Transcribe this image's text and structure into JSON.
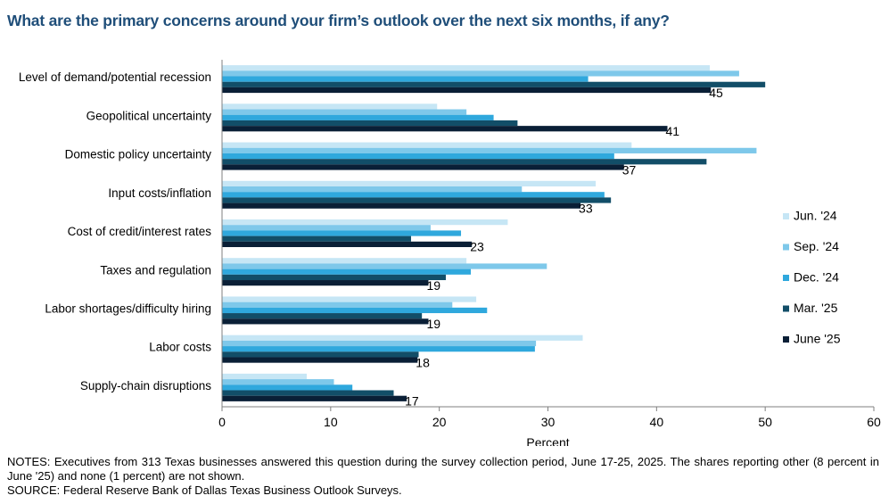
{
  "title": "What are the primary concerns around your firm’s outlook over the next six months, if any?",
  "notes": "NOTES: Executives from 313 Texas businesses answered this question during the survey collection period, June 17-25, 2025. The shares reporting other (8 percent in June '25) and none (1 percent) are not shown.",
  "source": "SOURCE: Federal Reserve Bank of Dallas Texas Business Outlook Surveys.",
  "chart_data": {
    "type": "bar",
    "orientation": "horizontal",
    "categories": [
      "Level of demand/potential recession",
      "Geopolitical uncertainty",
      "Domestic policy uncertainty",
      "Input costs/inflation",
      "Cost of credit/interest rates",
      "Taxes and regulation",
      "Labor shortages/difficulty hiring",
      "Labor costs",
      "Supply-chain disruptions"
    ],
    "series": [
      {
        "name": "Jun. '24",
        "color": "#c6e6f5",
        "values": [
          44.9,
          19.8,
          37.7,
          34.4,
          26.3,
          22.5,
          23.4,
          33.2,
          7.8
        ]
      },
      {
        "name": "Sep. '24",
        "color": "#7ec8ea",
        "values": [
          47.6,
          22.5,
          49.2,
          27.6,
          19.2,
          29.9,
          21.2,
          28.9,
          10.3
        ]
      },
      {
        "name": "Dec. '24",
        "color": "#2fa8dd",
        "values": [
          33.7,
          25.0,
          36.1,
          35.2,
          22.0,
          22.9,
          24.4,
          28.8,
          12.0
        ]
      },
      {
        "name": "Mar. '25",
        "color": "#124e68",
        "values": [
          50.0,
          27.2,
          44.6,
          35.8,
          17.4,
          20.6,
          18.4,
          18.1,
          15.8
        ]
      },
      {
        "name": "June '25",
        "color": "#0a1f36",
        "values": [
          45,
          41,
          37,
          33,
          23,
          19,
          19,
          18,
          17
        ]
      }
    ],
    "data_labels_series": "June '25",
    "data_labels": [
      "45",
      "41",
      "37",
      "33",
      "23",
      "19",
      "19",
      "18",
      "17"
    ],
    "xlabel": "Percent",
    "ylabel": "",
    "xlim": [
      0,
      60
    ],
    "xticks": [
      "0",
      "10",
      "20",
      "30",
      "40",
      "50",
      "60"
    ],
    "grid": false,
    "legend_position": "right"
  }
}
